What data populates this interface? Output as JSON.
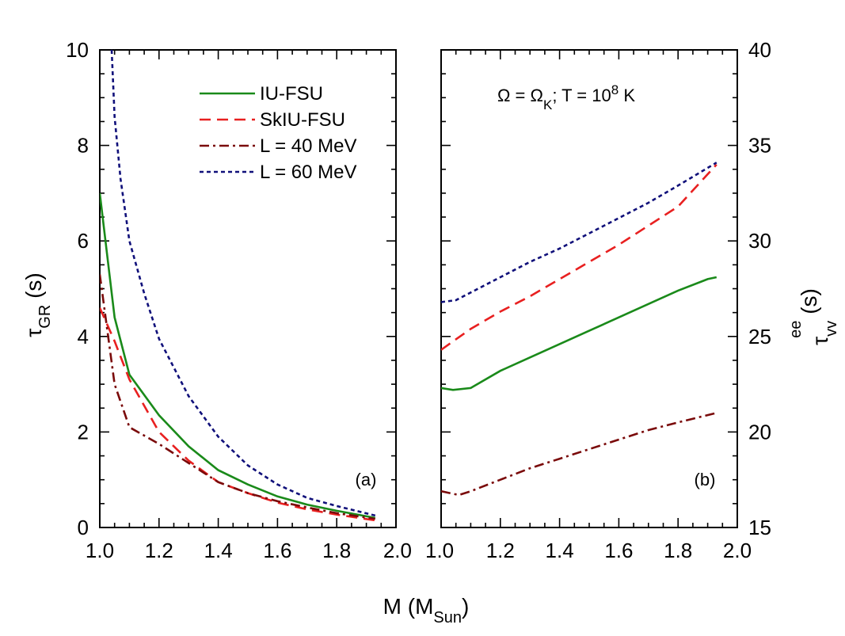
{
  "chart_data": [
    {
      "type": "line",
      "panel_label": "(a)",
      "xlim": [
        1.0,
        2.0
      ],
      "ylim": [
        0,
        10
      ],
      "x_ticks": [
        "1.0",
        "1.2",
        "1.4",
        "1.6",
        "1.8",
        "2.0"
      ],
      "y_ticks": [
        "0",
        "2",
        "4",
        "6",
        "8",
        "10"
      ],
      "ylabel": "τ",
      "ylabel_sub": "GR",
      "ylabel_unit": " (s)",
      "legend_position": "top-right",
      "series": [
        {
          "name": "IU-FSU",
          "color": "#1a8a1a",
          "dash": "solid",
          "x": [
            1.0,
            1.05,
            1.1,
            1.2,
            1.3,
            1.4,
            1.5,
            1.6,
            1.7,
            1.8,
            1.93
          ],
          "y": [
            7.0,
            4.4,
            3.2,
            2.35,
            1.7,
            1.2,
            0.9,
            0.65,
            0.48,
            0.35,
            0.2
          ]
        },
        {
          "name": "SkIU-FSU",
          "color": "#e82020",
          "dash": "dashed",
          "x": [
            1.0,
            1.05,
            1.1,
            1.2,
            1.3,
            1.4,
            1.5,
            1.6,
            1.7,
            1.8,
            1.93
          ],
          "y": [
            4.6,
            3.9,
            3.1,
            2.0,
            1.4,
            0.95,
            0.72,
            0.52,
            0.38,
            0.27,
            0.15
          ]
        },
        {
          "name": "L = 40 MeV",
          "color": "#7a0a0a",
          "dash": "dashdot",
          "x": [
            1.0,
            1.05,
            1.1,
            1.2,
            1.3,
            1.4,
            1.5,
            1.6,
            1.7,
            1.8,
            1.93
          ],
          "y": [
            5.3,
            3.0,
            2.1,
            1.75,
            1.35,
            0.95,
            0.72,
            0.55,
            0.42,
            0.3,
            0.18
          ]
        },
        {
          "name": "L = 60 MeV",
          "color": "#10107a",
          "dash": "dotted",
          "x": [
            1.04,
            1.05,
            1.07,
            1.1,
            1.15,
            1.2,
            1.3,
            1.4,
            1.5,
            1.6,
            1.7,
            1.8,
            1.93
          ],
          "y": [
            10.0,
            8.6,
            7.3,
            6.0,
            4.9,
            3.95,
            2.75,
            1.9,
            1.3,
            0.9,
            0.62,
            0.45,
            0.25
          ]
        }
      ]
    },
    {
      "type": "line",
      "panel_label": "(b)",
      "annotation": "Ω = Ω_K; T = 10^8 K",
      "xlim": [
        1.0,
        2.0
      ],
      "ylim": [
        15,
        40
      ],
      "x_ticks": [
        "1.0",
        "1.2",
        "1.4",
        "1.6",
        "1.8",
        "2.0"
      ],
      "y_ticks": [
        "15",
        "20",
        "25",
        "30",
        "35",
        "40"
      ],
      "ylabel": "τ",
      "ylabel_sub": "vv",
      "ylabel_sup": "ee",
      "ylabel_unit": " (s)",
      "series": [
        {
          "name": "IU-FSU",
          "color": "#1a8a1a",
          "dash": "solid",
          "x": [
            1.0,
            1.04,
            1.1,
            1.2,
            1.3,
            1.4,
            1.5,
            1.6,
            1.7,
            1.8,
            1.9,
            1.93
          ],
          "y": [
            22.3,
            22.2,
            22.3,
            23.2,
            23.9,
            24.6,
            25.3,
            26.0,
            26.7,
            27.4,
            28.0,
            28.1
          ]
        },
        {
          "name": "SkIU-FSU",
          "color": "#e82020",
          "dash": "dashed",
          "x": [
            1.0,
            1.1,
            1.2,
            1.3,
            1.4,
            1.5,
            1.6,
            1.7,
            1.8,
            1.93
          ],
          "y": [
            24.3,
            25.4,
            26.3,
            27.1,
            28.0,
            28.9,
            29.8,
            30.8,
            31.8,
            34.0
          ]
        },
        {
          "name": "L = 40 MeV",
          "color": "#7a0a0a",
          "dash": "dashdot",
          "x": [
            1.0,
            1.06,
            1.1,
            1.2,
            1.3,
            1.4,
            1.5,
            1.6,
            1.7,
            1.8,
            1.93
          ],
          "y": [
            16.9,
            16.7,
            16.9,
            17.5,
            18.1,
            18.6,
            19.1,
            19.6,
            20.1,
            20.5,
            21.0
          ]
        },
        {
          "name": "L = 60 MeV",
          "color": "#10107a",
          "dash": "dotted",
          "x": [
            1.0,
            1.05,
            1.1,
            1.2,
            1.3,
            1.4,
            1.5,
            1.6,
            1.7,
            1.8,
            1.93
          ],
          "y": [
            26.8,
            26.9,
            27.3,
            28.1,
            28.9,
            29.6,
            30.4,
            31.2,
            32.0,
            32.9,
            34.1
          ]
        }
      ]
    }
  ],
  "x_axis_title": {
    "main": "M (M",
    "sub": "Sun",
    "close": ")"
  },
  "annotation_parts": {
    "a": "Ω = Ω",
    "sub": "K",
    "b": "; T = 10",
    "sup": "8",
    "c": " K"
  }
}
